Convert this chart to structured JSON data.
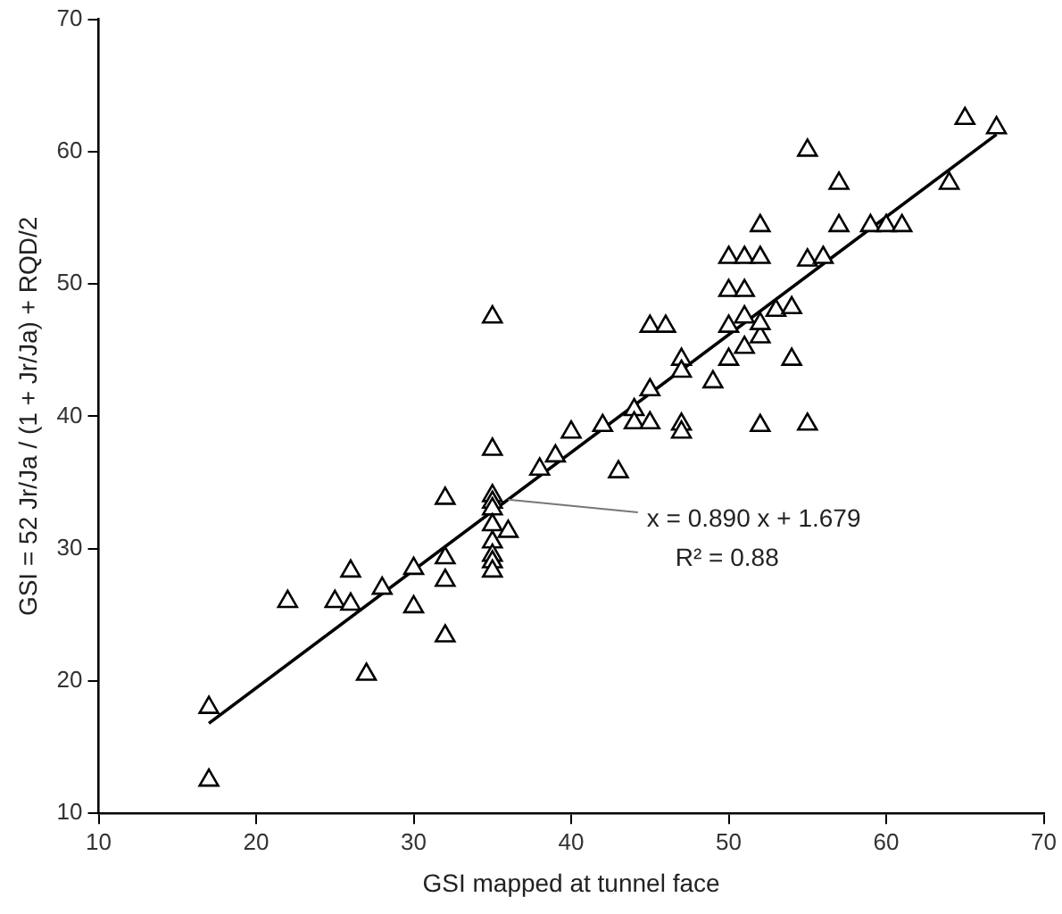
{
  "chart_data": {
    "type": "scatter",
    "xlabel": "GSI mapped at tunnel face",
    "ylabel": "GSI = 52 Jr/Ja / (1 + Jr/Ja) + RQD/2",
    "xlim": [
      10,
      70
    ],
    "xticks": [
      10,
      20,
      30,
      40,
      50,
      60,
      70
    ],
    "ylim": [
      10,
      70
    ],
    "yticks": [
      10,
      20,
      30,
      40,
      50,
      60,
      70
    ],
    "grid": false,
    "legend": false,
    "marker": "triangle",
    "series": [
      {
        "color": "#000000",
        "x": [
          17,
          17,
          22,
          25,
          26,
          26,
          27,
          28,
          30,
          30,
          32,
          32,
          32,
          32,
          35,
          35,
          35,
          35,
          35,
          35,
          35,
          35,
          35,
          35,
          36,
          38,
          39,
          40,
          42,
          43,
          44,
          44,
          45,
          45,
          45,
          46,
          47,
          47,
          47,
          47,
          49,
          50,
          50,
          50,
          50,
          51,
          51,
          51,
          51,
          52,
          52,
          52,
          52,
          52,
          53,
          54,
          54,
          55,
          55,
          55,
          56,
          57,
          57,
          59,
          60,
          61,
          64,
          65,
          67
        ],
        "values": [
          18,
          12.5,
          26,
          26,
          28.3,
          25.8,
          20.5,
          27,
          28.5,
          25.6,
          33.8,
          29.3,
          27.6,
          23.4,
          47.5,
          37.5,
          34,
          33.5,
          33,
          31.8,
          30.5,
          29.5,
          29,
          28.3,
          31.3,
          36,
          37,
          38.8,
          39.3,
          35.8,
          40.5,
          39.5,
          39.5,
          42,
          46.8,
          46.8,
          44.3,
          43.4,
          39.4,
          38.8,
          42.6,
          44.3,
          46.8,
          49.5,
          52,
          45.2,
          47.5,
          49.5,
          52,
          39.3,
          46,
          47,
          52,
          54.4,
          48,
          44.3,
          48.2,
          39.4,
          51.8,
          60.1,
          52,
          57.6,
          54.4,
          54.4,
          54.4,
          54.4,
          57.6,
          62.5,
          61.8
        ]
      },
      {
        "type": "line",
        "color": "#000000",
        "marker": "none",
        "x": [
          17,
          67
        ],
        "values": [
          16.8,
          61.3
        ]
      }
    ],
    "annotations": [
      {
        "text": "x = 0.890 x + 1.679",
        "x": 36,
        "y": 33.7
      },
      "R² = 0.88"
    ]
  }
}
